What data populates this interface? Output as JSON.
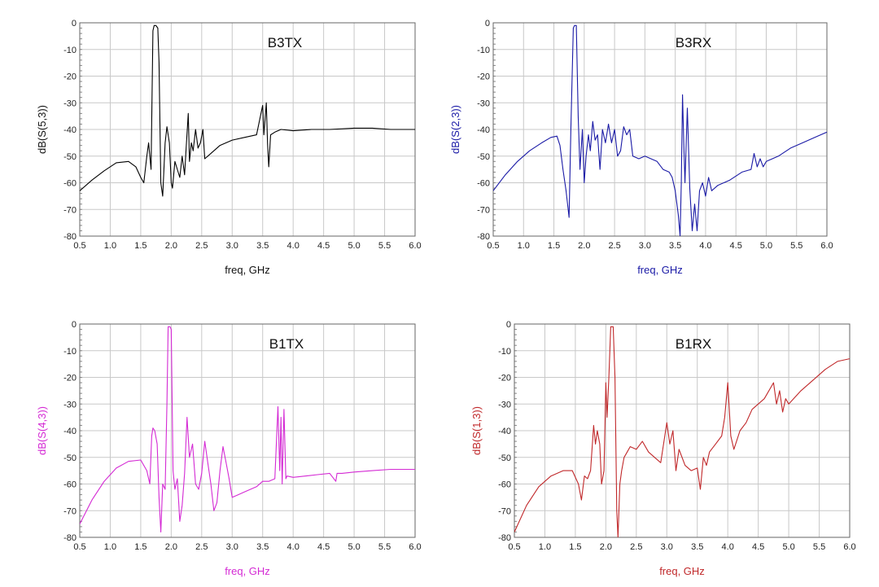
{
  "chart_data": [
    {
      "type": "line",
      "title": "B3TX",
      "xlabel": "freq, GHz",
      "ylabel": "dB(S(5,3))",
      "color": "#000000",
      "xlim": [
        0.5,
        6.0
      ],
      "ylim": [
        -80,
        0
      ],
      "grid": true,
      "xticks": [
        "0.5",
        "1.0",
        "1.5",
        "2.0",
        "2.5",
        "3.0",
        "3.5",
        "4.0",
        "4.5",
        "5.0",
        "5.5",
        "6.0"
      ],
      "yticks": [
        "0",
        "-10",
        "-20",
        "-30",
        "-40",
        "-50",
        "-60",
        "-70",
        "-80"
      ],
      "x": [
        0.5,
        0.7,
        0.9,
        1.1,
        1.3,
        1.42,
        1.5,
        1.55,
        1.6,
        1.63,
        1.67,
        1.7,
        1.72,
        1.75,
        1.78,
        1.8,
        1.83,
        1.86,
        1.9,
        1.93,
        1.97,
        2.0,
        2.02,
        2.06,
        2.1,
        2.14,
        2.18,
        2.22,
        2.25,
        2.28,
        2.3,
        2.33,
        2.36,
        2.4,
        2.44,
        2.48,
        2.52,
        2.55,
        2.6,
        2.7,
        2.8,
        2.9,
        3.0,
        3.2,
        3.4,
        3.5,
        3.52,
        3.56,
        3.58,
        3.6,
        3.63,
        3.7,
        3.8,
        4.0,
        4.3,
        4.6,
        5.0,
        5.3,
        5.6,
        6.0
      ],
      "y": [
        -63,
        -59,
        -55.5,
        -52.5,
        -52,
        -54,
        -58,
        -60,
        -50,
        -45,
        -55,
        -3,
        -1,
        -1,
        -2,
        -15,
        -60,
        -65,
        -45,
        -39,
        -45,
        -60,
        -62,
        -52,
        -55,
        -58,
        -50,
        -57,
        -45,
        -34,
        -52,
        -45,
        -48,
        -40,
        -47,
        -45,
        -40,
        -51,
        -50,
        -48,
        -46,
        -45,
        -44,
        -43,
        -42,
        -31,
        -42,
        -30,
        -45,
        -54,
        -42,
        -41,
        -40,
        -40.5,
        -40,
        -40,
        -39.5,
        -39.5,
        -40,
        -40
      ]
    },
    {
      "type": "line",
      "title": "B3RX",
      "xlabel": "freq, GHz",
      "ylabel": "dB(S(2,3))",
      "color": "#1a1aa6",
      "xlim": [
        0.5,
        6.0
      ],
      "ylim": [
        -80,
        0
      ],
      "grid": true,
      "xticks": [
        "0.5",
        "1.0",
        "1.5",
        "2.0",
        "2.5",
        "3.0",
        "3.5",
        "4.0",
        "4.5",
        "5.0",
        "5.5",
        "6.0"
      ],
      "yticks": [
        "0",
        "-10",
        "-20",
        "-30",
        "-40",
        "-50",
        "-60",
        "-70",
        "-80"
      ],
      "x": [
        0.5,
        0.7,
        0.9,
        1.1,
        1.3,
        1.45,
        1.55,
        1.6,
        1.65,
        1.7,
        1.75,
        1.78,
        1.82,
        1.84,
        1.87,
        1.9,
        1.93,
        1.97,
        2.0,
        2.03,
        2.07,
        2.1,
        2.14,
        2.18,
        2.22,
        2.26,
        2.3,
        2.35,
        2.4,
        2.45,
        2.5,
        2.55,
        2.6,
        2.65,
        2.7,
        2.75,
        2.8,
        2.9,
        3.0,
        3.1,
        3.2,
        3.3,
        3.4,
        3.45,
        3.5,
        3.55,
        3.58,
        3.6,
        3.62,
        3.64,
        3.66,
        3.7,
        3.74,
        3.78,
        3.82,
        3.86,
        3.9,
        3.95,
        4.0,
        4.05,
        4.1,
        4.2,
        4.4,
        4.6,
        4.75,
        4.8,
        4.85,
        4.9,
        4.95,
        5.0,
        5.2,
        5.4,
        5.6,
        5.8,
        6.0
      ],
      "y": [
        -63,
        -57,
        -52,
        -48,
        -45,
        -43,
        -42.5,
        -46,
        -55,
        -63,
        -73,
        -40,
        -2,
        -1,
        -1,
        -35,
        -55,
        -40,
        -60,
        -50,
        -42,
        -48,
        -37,
        -44,
        -42,
        -55,
        -40,
        -45,
        -38,
        -45,
        -40,
        -50,
        -48,
        -39,
        -42,
        -40,
        -50,
        -51,
        -50,
        -51,
        -52,
        -55,
        -56,
        -58,
        -63,
        -72,
        -80,
        -60,
        -27,
        -45,
        -60,
        -32,
        -62,
        -78,
        -68,
        -78,
        -63,
        -60,
        -65,
        -58,
        -63,
        -61,
        -59,
        -56,
        -55,
        -49,
        -54,
        -51,
        -54,
        -52,
        -50,
        -47,
        -45,
        -43,
        -41
      ]
    },
    {
      "type": "line",
      "title": "B1TX",
      "xlabel": "freq, GHz",
      "ylabel": "dB(S(4,3))",
      "color": "#d42ad4",
      "xlim": [
        0.5,
        6.0
      ],
      "ylim": [
        -80,
        0
      ],
      "grid": true,
      "xticks": [
        "0.5",
        "1.0",
        "1.5",
        "2.0",
        "2.5",
        "3.0",
        "3.5",
        "4.0",
        "4.5",
        "5.0",
        "5.5",
        "6.0"
      ],
      "yticks": [
        "0",
        "-10",
        "-20",
        "-30",
        "-40",
        "-50",
        "-60",
        "-70",
        "-80"
      ],
      "x": [
        0.5,
        0.7,
        0.9,
        1.1,
        1.3,
        1.5,
        1.6,
        1.65,
        1.68,
        1.7,
        1.73,
        1.77,
        1.8,
        1.83,
        1.86,
        1.9,
        1.93,
        1.95,
        1.98,
        2.0,
        2.03,
        2.06,
        2.1,
        2.14,
        2.18,
        2.22,
        2.26,
        2.3,
        2.35,
        2.4,
        2.45,
        2.5,
        2.55,
        2.6,
        2.65,
        2.7,
        2.75,
        2.8,
        2.85,
        2.9,
        2.95,
        3.0,
        3.1,
        3.2,
        3.4,
        3.5,
        3.6,
        3.7,
        3.75,
        3.78,
        3.8,
        3.82,
        3.85,
        3.88,
        3.9,
        4.0,
        4.2,
        4.4,
        4.6,
        4.7,
        4.72,
        4.8,
        5.0,
        5.3,
        5.6,
        6.0
      ],
      "y": [
        -75,
        -66,
        -59,
        -54,
        -51.5,
        -51,
        -55,
        -60,
        -42,
        -39,
        -40,
        -45,
        -65,
        -78,
        -60,
        -62,
        -30,
        -1,
        -1,
        -2,
        -55,
        -62,
        -58,
        -74,
        -68,
        -56,
        -35,
        -50,
        -45,
        -60,
        -62,
        -56,
        -44,
        -52,
        -60,
        -70,
        -67,
        -55,
        -46,
        -52,
        -58,
        -65,
        -64,
        -63,
        -61,
        -59,
        -59,
        -58,
        -31,
        -55,
        -35,
        -60,
        -32,
        -58,
        -57,
        -57.5,
        -57,
        -56.5,
        -56,
        -59,
        -56,
        -56,
        -55.5,
        -55,
        -54.5,
        -54.5
      ]
    },
    {
      "type": "line",
      "title": "B1RX",
      "xlabel": "freq, GHz",
      "ylabel": "dB(S(1,3))",
      "color": "#c0282a",
      "xlim": [
        0.5,
        6.0
      ],
      "ylim": [
        -80,
        0
      ],
      "grid": true,
      "xticks": [
        "0.5",
        "1.0",
        "1.5",
        "2.0",
        "2.5",
        "3.0",
        "3.5",
        "4.0",
        "4.5",
        "5.0",
        "5.5",
        "6.0"
      ],
      "yticks": [
        "0",
        "-10",
        "-20",
        "-30",
        "-40",
        "-50",
        "-60",
        "-70",
        "-80"
      ],
      "x": [
        0.5,
        0.7,
        0.9,
        1.1,
        1.3,
        1.45,
        1.55,
        1.6,
        1.65,
        1.7,
        1.75,
        1.8,
        1.83,
        1.86,
        1.9,
        1.93,
        1.97,
        2.0,
        2.02,
        2.05,
        2.08,
        2.12,
        2.15,
        2.18,
        2.2,
        2.23,
        2.26,
        2.3,
        2.35,
        2.4,
        2.5,
        2.6,
        2.7,
        2.8,
        2.9,
        3.0,
        3.05,
        3.1,
        3.15,
        3.2,
        3.3,
        3.4,
        3.5,
        3.55,
        3.6,
        3.65,
        3.7,
        3.8,
        3.9,
        3.95,
        4.0,
        4.05,
        4.1,
        4.2,
        4.3,
        4.4,
        4.6,
        4.75,
        4.8,
        4.85,
        4.9,
        4.95,
        5.0,
        5.2,
        5.4,
        5.6,
        5.8,
        6.0
      ],
      "y": [
        -78,
        -68,
        -61,
        -57,
        -55,
        -55,
        -60,
        -66,
        -57,
        -58,
        -55,
        -38,
        -45,
        -40,
        -45,
        -60,
        -55,
        -22,
        -35,
        -20,
        -1,
        -1,
        -20,
        -70,
        -80,
        -60,
        -55,
        -50,
        -48,
        -46,
        -47,
        -44,
        -48,
        -50,
        -52,
        -37,
        -45,
        -40,
        -55,
        -47,
        -53,
        -55,
        -54,
        -62,
        -50,
        -53,
        -48,
        -45,
        -42,
        -35,
        -22,
        -42,
        -47,
        -40,
        -37,
        -32,
        -28,
        -22,
        -30,
        -25,
        -33,
        -28,
        -30,
        -25,
        -21,
        -17,
        -14,
        -13
      ]
    }
  ]
}
